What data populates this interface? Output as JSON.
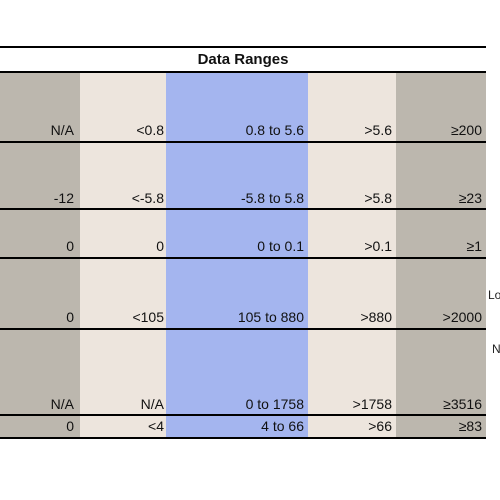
{
  "table": {
    "title": "Data Ranges",
    "rows": [
      {
        "cells": [
          "N/A",
          "<0.8",
          "0.8 to 5.6",
          ">5.6",
          "≥200"
        ]
      },
      {
        "cells": [
          "-12",
          "<-5.8",
          "-5.8 to 5.8",
          ">5.8",
          "≥23"
        ]
      },
      {
        "cells": [
          "0",
          "0",
          "0 to 0.1",
          ">0.1",
          "≥1"
        ]
      },
      {
        "cells": [
          "0",
          "<105",
          "105 to 880",
          ">880",
          ">2000"
        ]
      },
      {
        "cells": [
          "N/A",
          "N/A",
          "0 to 1758",
          ">1758",
          "≥3516"
        ]
      },
      {
        "cells": [
          "0",
          "<4",
          "4  to 66",
          ">66",
          "≥83"
        ]
      }
    ],
    "side_labels": [
      "Lo",
      "N"
    ]
  },
  "colors": {
    "dark_band": "#bcb7ae",
    "light_band": "#ede5dd",
    "blue_band": "#a4b5ef",
    "rule": "#000000"
  }
}
